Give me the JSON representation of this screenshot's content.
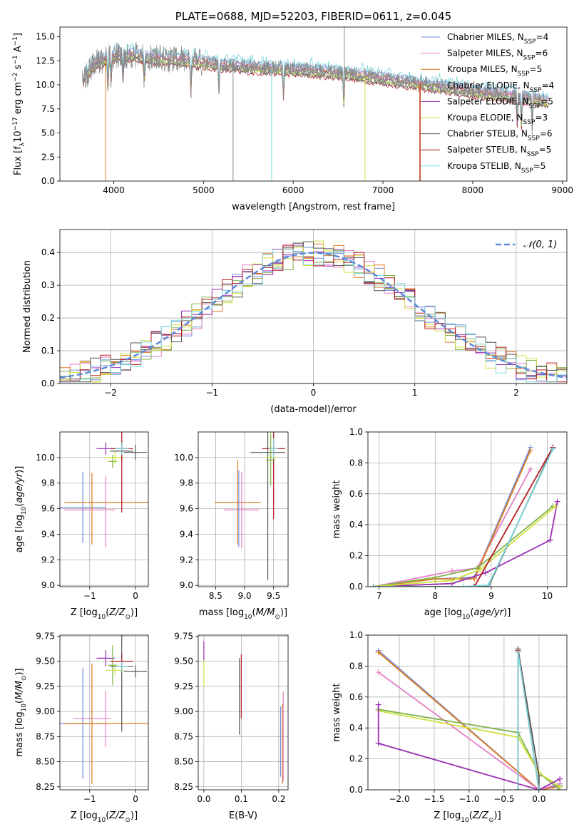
{
  "colors": {
    "chabrier_miles": "#6f8fde",
    "salpeter_miles": "#e47fc4",
    "kroupa_miles": "#e07a1c",
    "chabrier_elodie": "#7fb24b",
    "salpeter_elodie": "#9a2fb4",
    "kroupa_elodie": "#d0e040",
    "chabrier_stelib": "#555555",
    "salpeter_stelib": "#b31b1b",
    "kroupa_stelib": "#7ad7db",
    "spectrum": "#888888",
    "normal": "#5b8ad8"
  },
  "chart_data": [
    {
      "id": "spectrum",
      "type": "line",
      "title": "PLATE=0688, MJD=52203, FIBERID=0611, z=0.045",
      "xlabel": "wavelength [Angstrom, rest frame]",
      "ylabel": "Flux [f_λ 10^-17 erg cm^-2 s^-1 A^-1]",
      "xlim": [
        3400,
        9050
      ],
      "ylim": [
        0,
        16
      ],
      "xticks": [
        4000,
        5000,
        6000,
        7000,
        8000,
        9000
      ],
      "yticks": [
        0.0,
        2.5,
        5.0,
        7.5,
        10.0,
        12.5,
        15.0
      ],
      "legend_position": "top-right",
      "legend": [
        {
          "name": "Chabrier MILES, N",
          "sub": "SSP",
          "suffix": "=4"
        },
        {
          "name": "Salpeter MILES, N",
          "sub": "SSP",
          "suffix": "=6"
        },
        {
          "name": "Kroupa MILES, N",
          "sub": "SSP",
          "suffix": "=5"
        },
        {
          "name": "Chabrier ELODIE, N",
          "sub": "SSP",
          "suffix": "=4"
        },
        {
          "name": "Salpeter ELODIE, N",
          "sub": "SSP",
          "suffix": "=5"
        },
        {
          "name": "Kroupa ELODIE, N",
          "sub": "SSP",
          "suffix": "=3"
        },
        {
          "name": "Chabrier STELIB, N",
          "sub": "SSP",
          "suffix": "=6"
        },
        {
          "name": "Salpeter STELIB, N",
          "sub": "SSP",
          "suffix": "=5"
        },
        {
          "name": "Kroupa STELIB, N",
          "sub": "SSP",
          "suffix": "=5"
        }
      ],
      "continuum": {
        "x": [
          3650,
          3800,
          4000,
          4200,
          4500,
          4800,
          5000,
          5300,
          5600,
          6000,
          6300,
          6600,
          6900,
          7200,
          7500,
          7800,
          8100,
          8400,
          8700,
          8800
        ],
        "y": [
          10.5,
          12.3,
          13.0,
          13.1,
          12.7,
          12.6,
          12.3,
          12.0,
          11.8,
          11.6,
          11.4,
          11.2,
          10.8,
          10.4,
          10.0,
          9.6,
          9.2,
          8.9,
          8.5,
          8.3
        ]
      }
    },
    {
      "id": "residuals",
      "type": "histogram",
      "xlabel": "(data-model)/error",
      "ylabel": "Normed distribution",
      "xlim": [
        -2.5,
        2.5
      ],
      "ylim": [
        0,
        0.47
      ],
      "xticks": [
        -2,
        -1,
        0,
        1,
        2
      ],
      "yticks": [
        0.0,
        0.1,
        0.2,
        0.3,
        0.4
      ],
      "legend_position": "top-right",
      "legend": [
        "𝒩(0, 1)"
      ],
      "bin_width": 0.1
    },
    {
      "id": "age_vs_Z",
      "type": "errorbar",
      "xlabel": "Z [log10(Z/Z⊙)]",
      "ylabel": "age [log10(age/yr)]",
      "xlim": [
        -1.65,
        0.28
      ],
      "ylim": [
        8.99,
        10.2
      ],
      "xticks": [
        -1,
        0
      ],
      "yticks": [
        9.0,
        9.2,
        9.4,
        9.6,
        9.8,
        10.0
      ],
      "points": [
        {
          "s": "chabrier_miles",
          "x": -1.15,
          "xe": 0.5,
          "y": 9.61,
          "ye": 0.28
        },
        {
          "s": "salpeter_miles",
          "x": -0.65,
          "xe": 0.0,
          "y": 9.58,
          "ye": 0.28
        },
        {
          "s": "kroupa_miles",
          "x": -0.95,
          "xe": 0.0,
          "y": 9.6,
          "ye": 0.28
        },
        {
          "s": "salpeter_miles",
          "x": -1.0,
          "xe": 0.55,
          "y": 9.59,
          "ye": 0.0
        },
        {
          "s": "kroupa_miles",
          "x": -0.5,
          "xe": 1.05,
          "y": 9.65,
          "ye": 0.0
        },
        {
          "s": "salpeter_elodie",
          "x": -0.65,
          "xe": 0.2,
          "y": 10.07,
          "ye": 0.05
        },
        {
          "s": "chabrier_elodie",
          "x": -0.5,
          "xe": 0.1,
          "y": 9.97,
          "ye": 0.05
        },
        {
          "s": "kroupa_elodie",
          "x": -0.45,
          "xe": 0.2,
          "y": 10.0,
          "ye": 0.05
        },
        {
          "s": "chabrier_stelib",
          "x": -0.3,
          "xe": 0.25,
          "y": 10.05,
          "ye": 0.08
        },
        {
          "s": "salpeter_stelib",
          "x": -0.3,
          "xe": 0.25,
          "y": 10.07,
          "ye": 0.5
        },
        {
          "s": "chabrier_stelib",
          "x": 0.0,
          "xe": 0.25,
          "y": 10.04,
          "ye": 0.06
        },
        {
          "s": "kroupa_stelib",
          "x": -0.3,
          "xe": 0.15,
          "y": 10.07,
          "ye": 0.05
        }
      ]
    },
    {
      "id": "age_vs_mass",
      "type": "errorbar",
      "xlabel": "mass [log10(M/M⊙)]",
      "ylabel": "",
      "xlim": [
        8.2,
        9.75
      ],
      "ylim": [
        8.99,
        10.2
      ],
      "xticks": [
        8.5,
        9.0,
        9.5
      ],
      "yticks": [
        9.0,
        9.2,
        9.4,
        9.6,
        9.8,
        10.0
      ],
      "points": [
        {
          "s": "kroupa_miles",
          "x": 8.88,
          "xe": 0.4,
          "y": 9.65,
          "ye": 0.33
        },
        {
          "s": "salpeter_miles",
          "x": 8.95,
          "xe": 0.3,
          "y": 9.59,
          "ye": 0.3
        },
        {
          "s": "chabrier_miles",
          "x": 8.9,
          "xe": 0.0,
          "y": 9.6,
          "ye": 0.3
        },
        {
          "s": "chabrier_stelib",
          "x": 9.4,
          "xe": 0.3,
          "y": 10.04,
          "ye": 1.0
        },
        {
          "s": "salpeter_stelib",
          "x": 9.5,
          "xe": 0.2,
          "y": 10.07,
          "ye": 0.55
        },
        {
          "s": "kroupa_elodie",
          "x": 9.45,
          "xe": 0.1,
          "y": 10.0,
          "ye": 0.2
        },
        {
          "s": "chabrier_elodie",
          "x": 9.45,
          "xe": 0.08,
          "y": 9.98,
          "ye": 0.2
        },
        {
          "s": "kroupa_stelib",
          "x": 9.5,
          "xe": 0.08,
          "y": 10.07,
          "ye": 0.08
        }
      ]
    },
    {
      "id": "mass_weight_vs_age",
      "type": "line",
      "xlabel": "age [log10(age/yr)]",
      "ylabel": "mass weight",
      "xlim": [
        6.8,
        10.35
      ],
      "ylim": [
        0,
        1
      ],
      "xticks": [
        7,
        8,
        9,
        10
      ],
      "yticks": [
        0.0,
        0.2,
        0.4,
        0.6,
        0.8,
        1.0
      ],
      "series": [
        {
          "s": "chabrier_miles",
          "x": [
            6.9,
            8.0,
            8.7,
            9.7
          ],
          "y": [
            0.0,
            0.05,
            0.06,
            0.9
          ]
        },
        {
          "s": "salpeter_miles",
          "x": [
            6.9,
            8.3,
            8.75,
            9.7
          ],
          "y": [
            0.0,
            0.1,
            0.12,
            0.76
          ]
        },
        {
          "s": "kroupa_miles",
          "x": [
            6.9,
            8.0,
            8.7,
            9.7
          ],
          "y": [
            0.0,
            0.05,
            0.05,
            0.88
          ]
        },
        {
          "s": "chabrier_elodie",
          "x": [
            6.9,
            8.0,
            8.75,
            10.1
          ],
          "y": [
            0.0,
            0.06,
            0.12,
            0.52
          ]
        },
        {
          "s": "salpeter_elodie",
          "x": [
            6.9,
            8.3,
            8.9,
            10.05,
            10.18
          ],
          "y": [
            0.0,
            0.02,
            0.09,
            0.3,
            0.55
          ]
        },
        {
          "s": "kroupa_elodie",
          "x": [
            6.9,
            8.3,
            8.8,
            10.15
          ],
          "y": [
            0.0,
            0.04,
            0.11,
            0.52
          ]
        },
        {
          "s": "chabrier_stelib",
          "x": [
            6.9,
            8.7,
            8.95,
            10.1
          ],
          "y": [
            0.0,
            0.0,
            0.0,
            0.9
          ]
        },
        {
          "s": "salpeter_stelib",
          "x": [
            6.9,
            8.7,
            10.1
          ],
          "y": [
            0.0,
            0.0,
            0.9
          ]
        },
        {
          "s": "kroupa_stelib",
          "x": [
            6.9,
            8.5,
            8.95,
            10.1
          ],
          "y": [
            0.0,
            0.0,
            0.01,
            0.89
          ]
        }
      ]
    },
    {
      "id": "mass_vs_Z",
      "type": "errorbar",
      "xlabel": "Z [log10(Z/Z⊙)]",
      "ylabel": "mass [log10(M/M⊙)]",
      "xlim": [
        -1.65,
        0.28
      ],
      "ylim": [
        8.22,
        9.76
      ],
      "xticks": [
        -1,
        0
      ],
      "yticks": [
        8.25,
        8.5,
        8.75,
        9.0,
        9.25,
        9.5,
        9.75
      ],
      "points": [
        {
          "s": "chabrier_miles",
          "x": -1.15,
          "xe": 0.5,
          "y": 8.88,
          "ye": 0.55
        },
        {
          "s": "kroupa_miles",
          "x": -0.95,
          "xe": 0.0,
          "y": 8.88,
          "ye": 0.6
        },
        {
          "s": "kroupa_miles",
          "x": -0.5,
          "xe": 1.05,
          "y": 8.88,
          "ye": 0.0
        },
        {
          "s": "salpeter_miles",
          "x": -0.65,
          "xe": 0.0,
          "y": 8.93,
          "ye": 0.28
        },
        {
          "s": "salpeter_miles",
          "x": -0.95,
          "xe": 0.4,
          "y": 8.93,
          "ye": 0.0
        },
        {
          "s": "salpeter_elodie",
          "x": -0.65,
          "xe": 0.2,
          "y": 9.53,
          "ye": 0.08
        },
        {
          "s": "chabrier_elodie",
          "x": -0.5,
          "xe": 0.1,
          "y": 9.46,
          "ye": 0.2
        },
        {
          "s": "kroupa_elodie",
          "x": -0.45,
          "xe": 0.2,
          "y": 9.41,
          "ye": 0.05
        },
        {
          "s": "chabrier_stelib",
          "x": -0.3,
          "xe": 0.25,
          "y": 9.45,
          "ye": 0.65
        },
        {
          "s": "salpeter_stelib",
          "x": -0.3,
          "xe": 0.25,
          "y": 9.5,
          "ye": 0.08
        },
        {
          "s": "chabrier_stelib",
          "x": 0.0,
          "xe": 0.25,
          "y": 9.4,
          "ye": 0.06
        },
        {
          "s": "kroupa_stelib",
          "x": -0.3,
          "xe": 0.15,
          "y": 9.45,
          "ye": 0.05
        }
      ]
    },
    {
      "id": "mass_vs_ebv",
      "type": "errorbar",
      "xlabel": "E(B-V)",
      "ylabel": "",
      "xlim": [
        -0.015,
        0.225
      ],
      "ylim": [
        8.22,
        9.76
      ],
      "xticks": [
        0.0,
        0.1,
        0.2
      ],
      "yticks": [
        8.25,
        8.5,
        8.75,
        9.0,
        9.25,
        9.5,
        9.75
      ],
      "points": [
        {
          "s": "salpeter_elodie",
          "x": 0.0,
          "xe": 0.0,
          "y": 9.6,
          "ye": 0.1
        },
        {
          "s": "kroupa_elodie",
          "x": 0.0,
          "xe": 0.0,
          "y": 9.38,
          "ye": 0.13
        },
        {
          "s": "chabrier_stelib",
          "x": 0.095,
          "xe": 0.0,
          "y": 9.15,
          "ye": 0.38
        },
        {
          "s": "salpeter_stelib",
          "x": 0.1,
          "xe": 0.0,
          "y": 9.25,
          "ye": 0.32
        },
        {
          "s": "chabrier_miles",
          "x": 0.205,
          "xe": 0.0,
          "y": 8.7,
          "ye": 0.35
        },
        {
          "s": "kroupa_miles",
          "x": 0.21,
          "xe": 0.0,
          "y": 8.68,
          "ye": 0.4
        },
        {
          "s": "salpeter_miles",
          "x": 0.212,
          "xe": 0.0,
          "y": 8.75,
          "ye": 0.45
        }
      ]
    },
    {
      "id": "mass_weight_vs_Z",
      "type": "line",
      "xlabel": "Z [log10(Z/Z⊙)]",
      "ylabel": "mass weight",
      "xlim": [
        -2.45,
        0.4
      ],
      "ylim": [
        0,
        1
      ],
      "xticks": [
        -2.0,
        -1.5,
        -1.0,
        -0.5,
        0.0
      ],
      "yticks": [
        0.0,
        0.2,
        0.4,
        0.6,
        0.8,
        1.0
      ],
      "series": [
        {
          "s": "chabrier_miles",
          "x": [
            -2.3,
            0.0,
            0.3
          ],
          "y": [
            0.9,
            0.0,
            0.03
          ]
        },
        {
          "s": "kroupa_miles",
          "x": [
            -2.3,
            0.0,
            0.3
          ],
          "y": [
            0.89,
            0.0,
            0.02
          ]
        },
        {
          "s": "salpeter_miles",
          "x": [
            -2.3,
            0.0,
            0.3
          ],
          "y": [
            0.76,
            0.0,
            0.04
          ]
        },
        {
          "s": "chabrier_elodie",
          "x": [
            -2.3,
            -0.3,
            0.0,
            0.3
          ],
          "y": [
            0.52,
            0.37,
            0.11,
            0.0
          ]
        },
        {
          "s": "kroupa_elodie",
          "x": [
            -2.3,
            -0.3,
            0.0,
            0.3
          ],
          "y": [
            0.51,
            0.34,
            0.11,
            0.02
          ]
        },
        {
          "s": "salpeter_elodie",
          "x": [
            -2.3,
            -2.3,
            0.0,
            0.3
          ],
          "y": [
            0.55,
            0.3,
            0.0,
            0.07
          ]
        },
        {
          "s": "chabrier_stelib",
          "x": [
            -0.3,
            -0.3,
            0.0,
            0.0
          ],
          "y": [
            0.0,
            0.91,
            0.09,
            0.0
          ]
        },
        {
          "s": "salpeter_stelib",
          "x": [
            -0.3,
            -0.3,
            0.0
          ],
          "y": [
            0.0,
            0.9,
            0.0
          ]
        },
        {
          "s": "kroupa_stelib",
          "x": [
            -0.3,
            -0.3,
            0.0
          ],
          "y": [
            0.0,
            0.89,
            0.0
          ]
        }
      ]
    }
  ]
}
